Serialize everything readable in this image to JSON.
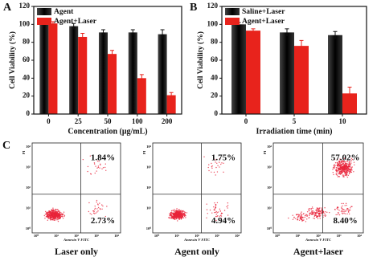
{
  "chart_data": [
    {
      "type": "bar",
      "panel": "A",
      "categories": [
        "0",
        "25",
        "50",
        "100",
        "200"
      ],
      "x_label": "Concentration (μg/mL)",
      "y_label": "Cell Viability (%)",
      "ylim": [
        0,
        120
      ],
      "yticks": [
        0,
        20,
        40,
        60,
        80,
        100,
        120
      ],
      "series": [
        {
          "name": "Agent",
          "color": "#151515",
          "values": [
            100,
            98,
            91,
            91,
            89
          ],
          "errors": [
            2,
            3,
            3,
            3,
            5
          ]
        },
        {
          "name": "Agent+Laser",
          "color": "#e8231c",
          "values": [
            101,
            86,
            67,
            40,
            21
          ],
          "errors": [
            2,
            4,
            4,
            4,
            3
          ]
        }
      ]
    },
    {
      "type": "bar",
      "panel": "B",
      "categories": [
        "0",
        "5",
        "10"
      ],
      "x_label": "Irradiation time (min)",
      "y_label": "Cell Viability (%)",
      "ylim": [
        0,
        120
      ],
      "yticks": [
        0,
        20,
        40,
        60,
        80,
        100,
        120
      ],
      "series": [
        {
          "name": "Saline+Laser",
          "color": "#151515",
          "values": [
            100,
            91,
            88
          ],
          "errors": [
            2,
            4,
            4
          ]
        },
        {
          "name": "Agent+Laser",
          "color": "#e8231c",
          "values": [
            93,
            76,
            23
          ],
          "errors": [
            2,
            6,
            7
          ]
        }
      ]
    }
  ],
  "panel_c": {
    "label": "C",
    "x_axis_label": "Annexin V FITC",
    "y_axis_label": "PI",
    "tick_labels": [
      "10⁰",
      "10¹",
      "10²",
      "10³",
      "10⁴"
    ],
    "plots": [
      {
        "title": "Laser only",
        "upper_right": "1.84%",
        "lower_right": "2.73%"
      },
      {
        "title": "Agent only",
        "upper_right": "1.75%",
        "lower_right": "4.94%"
      },
      {
        "title": "Agent+laser",
        "upper_right": "57.02%",
        "lower_right": "8.40%"
      }
    ]
  }
}
